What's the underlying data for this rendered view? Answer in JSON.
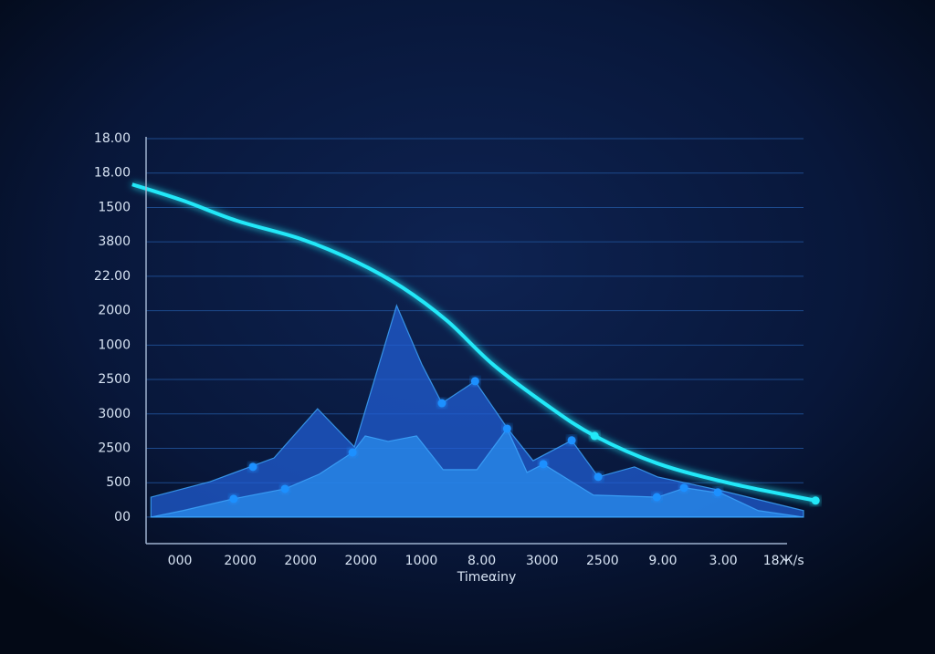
{
  "chart_data": {
    "type": "area",
    "x_label": "Timeαiny",
    "categories": [
      "000",
      "2000",
      "2000",
      "2000",
      "1000",
      "8.00",
      "3000",
      "2500",
      "9.00",
      "3.00",
      "18Ж/s"
    ],
    "xlim": [
      -0.56,
      10.33
    ],
    "ylim": [
      -0.4,
      11
    ],
    "yticks": [
      {
        "value": 0,
        "label": "00"
      },
      {
        "value": 1,
        "label": "500"
      },
      {
        "value": 2,
        "label": "2500"
      },
      {
        "value": 3,
        "label": "3000"
      },
      {
        "value": 4,
        "label": "2500"
      },
      {
        "value": 5,
        "label": "1000"
      },
      {
        "value": 6,
        "label": "2000"
      },
      {
        "value": 7,
        "label": "22.00"
      },
      {
        "value": 8,
        "label": "3800"
      },
      {
        "value": 9,
        "label": "1500"
      },
      {
        "value": 10,
        "label": "18.00"
      },
      {
        "value": 11,
        "label": "18.00"
      }
    ],
    "grid": true,
    "series": [
      {
        "type": "area",
        "color": "#2160d8",
        "x": [
          -0.48,
          0.5,
          1.56,
          2.28,
          2.89,
          3.59,
          4.01,
          4.34,
          4.89,
          5.43,
          5.85,
          6.49,
          6.93,
          7.53,
          7.91,
          8.97,
          10.33
        ],
        "values": [
          0.58,
          1.03,
          1.72,
          3.15,
          2.04,
          6.15,
          4.43,
          3.31,
          3.95,
          2.57,
          1.64,
          2.23,
          1.17,
          1.46,
          1.17,
          0.77,
          0.19
        ]
      },
      {
        "type": "area",
        "color": "#2a8ff0",
        "x": [
          -0.48,
          0.05,
          0.88,
          1.74,
          2.31,
          2.86,
          3.07,
          3.45,
          3.92,
          4.36,
          4.92,
          5.42,
          5.75,
          6.02,
          6.85,
          7.91,
          8.37,
          8.97,
          9.58,
          10.33
        ],
        "values": [
          0,
          0.19,
          0.53,
          0.82,
          1.25,
          1.88,
          2.36,
          2.2,
          2.36,
          1.38,
          1.38,
          2.57,
          1.3,
          1.54,
          0.64,
          0.58,
          0.85,
          0.69,
          0.19,
          0
        ]
      },
      {
        "type": "scatter",
        "color": "#1e90ff",
        "x": [
          1.21,
          0.89,
          1.74,
          2.86,
          4.34,
          4.89,
          5.42,
          6.02,
          6.49,
          6.93,
          7.9,
          8.35,
          8.91
        ],
        "values": [
          1.46,
          0.53,
          0.82,
          1.88,
          3.31,
          3.95,
          2.57,
          1.54,
          2.23,
          1.17,
          0.58,
          0.85,
          0.72
        ]
      },
      {
        "type": "line",
        "color": "#22e8f8",
        "x": [
          -0.79,
          0.05,
          0.95,
          2.01,
          2.92,
          3.68,
          4.43,
          5.19,
          6.1,
          6.87,
          7.91,
          9.12,
          10.53
        ],
        "values": [
          9.67,
          9.2,
          8.61,
          8.08,
          7.42,
          6.68,
          5.7,
          4.43,
          3.23,
          2.36,
          1.56,
          0.98,
          0.48
        ]
      },
      {
        "type": "scatter",
        "color": "#22e8f8",
        "x": [
          6.87,
          10.53
        ],
        "values": [
          2.36,
          0.48
        ]
      }
    ]
  }
}
